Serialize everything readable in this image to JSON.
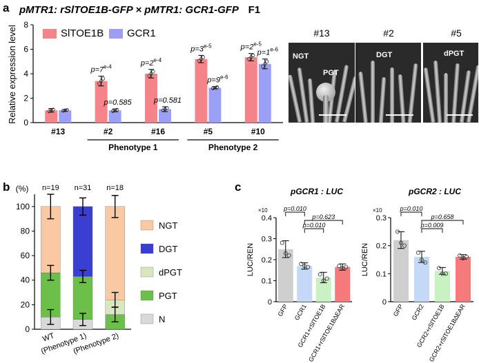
{
  "panel_a": {
    "letter": "a",
    "title": "pMTR1: rSlTOE1B-GFP × pMTR1: GCR1-GFP",
    "title_suffix": "F1",
    "images": [
      {
        "title": "#13",
        "labels": [
          "NGT",
          "PGT"
        ]
      },
      {
        "title": "#2",
        "labels": [
          "DGT"
        ]
      },
      {
        "title": "#5",
        "labels": [
          "dPGT"
        ]
      }
    ]
  },
  "panel_b": {
    "letter": "b"
  },
  "panel_c": {
    "letter": "c"
  },
  "chart_data": [
    {
      "type": "bar",
      "ylabel": "Relative expression level",
      "ylim": [
        0,
        8
      ],
      "yticks": [
        0,
        2,
        4,
        6,
        8
      ],
      "categories": [
        "#13",
        "#2",
        "#16",
        "#5",
        "#10"
      ],
      "series": [
        {
          "name": "SlTOE1B",
          "color": "#f4838a",
          "values": [
            1.0,
            3.4,
            4.0,
            5.2,
            5.35
          ],
          "errors": [
            0.15,
            0.4,
            0.35,
            0.3,
            0.3
          ]
        },
        {
          "name": "GCR1",
          "color": "#9b9ff5",
          "values": [
            1.0,
            1.0,
            1.1,
            2.85,
            4.8
          ],
          "errors": [
            0.08,
            0.12,
            0.2,
            0.1,
            0.4
          ]
        }
      ],
      "annotations": [
        {
          "category": "#2",
          "series": "SlTOE1B",
          "text": "p=7",
          "exp": "e-4"
        },
        {
          "category": "#2",
          "series": "GCR1",
          "text": "p=0.585",
          "exp": ""
        },
        {
          "category": "#16",
          "series": "SlTOE1B",
          "text": "p=2",
          "exp": "e-4"
        },
        {
          "category": "#16",
          "series": "GCR1",
          "text": "p=0.581",
          "exp": ""
        },
        {
          "category": "#5",
          "series": "SlTOE1B",
          "text": "p=3",
          "exp": "e-5"
        },
        {
          "category": "#5",
          "series": "GCR1",
          "text": "p=9",
          "exp": "e-6"
        },
        {
          "category": "#10",
          "series": "SlTOE1B",
          "text": "p=2",
          "exp": "e-5"
        },
        {
          "category": "#10",
          "series": "GCR1",
          "text": "p=1",
          "exp": "e-6"
        }
      ],
      "groups": [
        {
          "label": "Phenotype 1",
          "categories": [
            "#2",
            "#16"
          ]
        },
        {
          "label": "Phenotype 2",
          "categories": [
            "#5",
            "#10"
          ]
        }
      ]
    },
    {
      "type": "bar",
      "stacked": true,
      "ylabel": "(%)",
      "ylim": [
        0,
        110
      ],
      "yticks": [
        0,
        20,
        40,
        60,
        80,
        100
      ],
      "categories": [
        "WT",
        "(Phenotype 1)",
        "(Phenotype 2)"
      ],
      "n_labels": [
        "n=19",
        "n=31",
        "n=18"
      ],
      "series": [
        {
          "name": "N",
          "color": "#d9d9d9",
          "values": [
            10,
            8,
            0
          ]
        },
        {
          "name": "PGT",
          "color": "#6cc04a",
          "values": [
            36,
            35,
            12
          ]
        },
        {
          "name": "dPGT",
          "color": "#d7e8bf",
          "values": [
            0,
            0,
            12
          ]
        },
        {
          "name": "DGT",
          "color": "#3b3fd1",
          "values": [
            0,
            57,
            0
          ]
        },
        {
          "name": "NGT",
          "color": "#f8c9a2",
          "values": [
            54,
            0,
            76
          ]
        }
      ],
      "errors": [
        {
          "category": "WT",
          "y": 10,
          "err": 6
        },
        {
          "category": "WT",
          "y": 46,
          "err": 6
        },
        {
          "category": "WT",
          "y": 100,
          "err": 10
        },
        {
          "category": "(Phenotype 1)",
          "y": 8,
          "err": 5
        },
        {
          "category": "(Phenotype 1)",
          "y": 43,
          "err": 5
        },
        {
          "category": "(Phenotype 1)",
          "y": 100,
          "err": 7
        },
        {
          "category": "(Phenotype 2)",
          "y": 12,
          "err": 6
        },
        {
          "category": "(Phenotype 2)",
          "y": 24,
          "err": 6
        },
        {
          "category": "(Phenotype 2)",
          "y": 100,
          "err": 9
        }
      ]
    },
    {
      "type": "bar",
      "title": "pGCR1 : LUC",
      "ylabel": "LUC/REN",
      "multiplier": "×10",
      "ylim": [
        0,
        0.4
      ],
      "yticks": [
        0,
        0.1,
        0.2,
        0.3,
        0.4
      ],
      "categories": [
        "GFP",
        "GCR1",
        "GCR1+rSlTOE1B",
        "GCR1+rSlTOE1B∆EAR"
      ],
      "colors": [
        "#cfcfcf",
        "#c3d9f7",
        "#c8f2c2",
        "#f77a7a"
      ],
      "values": [
        0.25,
        0.17,
        0.115,
        0.165
      ],
      "errors": [
        0.04,
        0.015,
        0.025,
        0.015
      ],
      "points": [
        [
          0.28,
          0.23,
          0.22
        ],
        [
          0.18,
          0.17,
          0.165
        ],
        [
          0.13,
          0.1,
          0.11
        ],
        [
          0.17,
          0.16,
          0.165
        ]
      ],
      "comparisons": [
        {
          "from": 0,
          "to": 1,
          "text": "p=0.010"
        },
        {
          "from": 1,
          "to": 3,
          "text": "p=0.623"
        },
        {
          "from": 1,
          "to": 2,
          "text": "p=0.010"
        }
      ]
    },
    {
      "type": "bar",
      "title": "pGCR2 : LUC",
      "ylabel": "LUC/REN",
      "multiplier": "×10",
      "ylim": [
        0,
        0.3
      ],
      "yticks": [
        0,
        0.1,
        0.2,
        0.3
      ],
      "categories": [
        "GFP",
        "GCR2",
        "GCR2+rSlTOE1B",
        "GCR2+rSlTOE1B∆EAR"
      ],
      "colors": [
        "#cfcfcf",
        "#c3d9f7",
        "#c8f2c2",
        "#f77a7a"
      ],
      "values": [
        0.22,
        0.16,
        0.11,
        0.16
      ],
      "errors": [
        0.03,
        0.02,
        0.012,
        0.008
      ],
      "points": [
        [
          0.25,
          0.21,
          0.2
        ],
        [
          0.175,
          0.15,
          0.14
        ],
        [
          0.12,
          0.1,
          0.1
        ],
        [
          0.165,
          0.155,
          0.16
        ]
      ],
      "comparisons": [
        {
          "from": 0,
          "to": 1,
          "text": "p=0.010"
        },
        {
          "from": 1,
          "to": 3,
          "text": "p=0.658"
        },
        {
          "from": 1,
          "to": 2,
          "text": "p=0.009"
        }
      ]
    }
  ]
}
